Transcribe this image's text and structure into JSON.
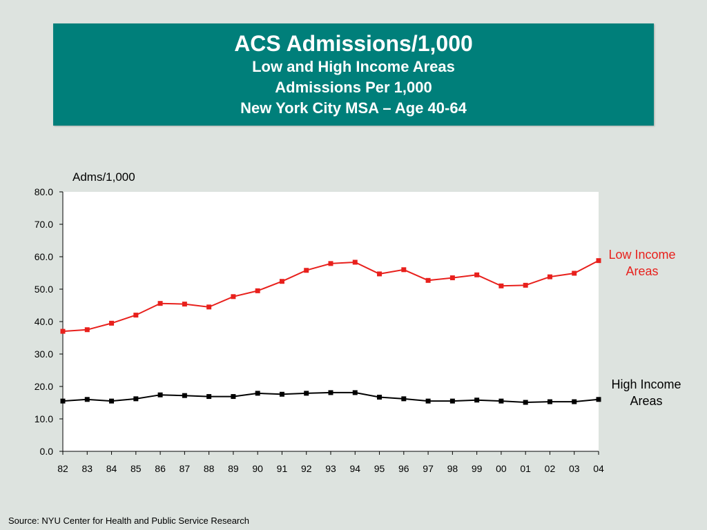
{
  "title": {
    "main": "ACS Admissions/1,000",
    "line2": "Low and High Income Areas",
    "line3": "Admissions Per 1,000",
    "line4": "New York City MSA – Age 40-64"
  },
  "source": "Source:  NYU Center for Health and Public Service Research",
  "colors": {
    "header_bg": "#007f7a",
    "low": "#e8201c",
    "high": "#000000",
    "page_bg": "#dde3df"
  },
  "chart_data": {
    "type": "line",
    "ylabel": "Adms/1,000",
    "ylim": [
      0,
      80
    ],
    "yticks": [
      "0.0",
      "10.0",
      "20.0",
      "30.0",
      "40.0",
      "50.0",
      "60.0",
      "70.0",
      "80.0"
    ],
    "x": [
      "82",
      "83",
      "84",
      "85",
      "86",
      "87",
      "88",
      "89",
      "90",
      "91",
      "92",
      "93",
      "94",
      "95",
      "96",
      "97",
      "98",
      "99",
      "00",
      "01",
      "02",
      "03",
      "04"
    ],
    "grid": false,
    "series": [
      {
        "name": "Low Income Areas",
        "color": "#e8201c",
        "values": [
          37.0,
          37.5,
          39.5,
          42.0,
          45.6,
          45.4,
          44.5,
          47.7,
          49.5,
          52.4,
          55.8,
          57.9,
          58.3,
          54.7,
          56.0,
          52.7,
          53.5,
          54.4,
          51.0,
          51.2,
          53.8,
          54.9,
          58.8
        ]
      },
      {
        "name": "High Income Areas",
        "color": "#000000",
        "values": [
          15.5,
          16.0,
          15.5,
          16.2,
          17.4,
          17.2,
          16.9,
          16.9,
          17.9,
          17.6,
          17.9,
          18.1,
          18.1,
          16.7,
          16.2,
          15.5,
          15.5,
          15.8,
          15.5,
          15.1,
          15.3,
          15.3,
          16.0
        ]
      }
    ]
  }
}
